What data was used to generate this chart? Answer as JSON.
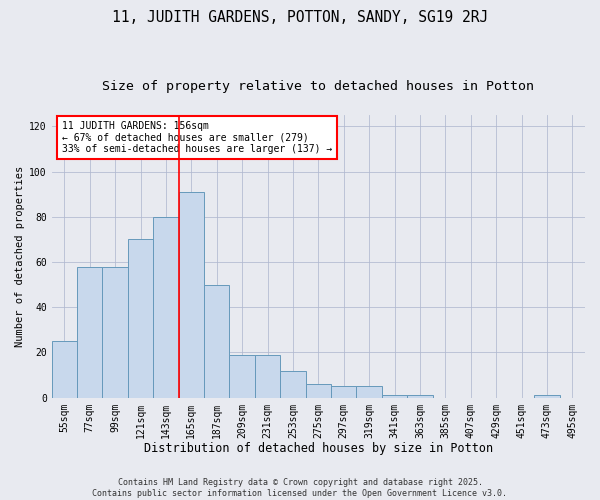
{
  "title1": "11, JUDITH GARDENS, POTTON, SANDY, SG19 2RJ",
  "title2": "Size of property relative to detached houses in Potton",
  "xlabel": "Distribution of detached houses by size in Potton",
  "ylabel": "Number of detached properties",
  "categories": [
    "55sqm",
    "77sqm",
    "99sqm",
    "121sqm",
    "143sqm",
    "165sqm",
    "187sqm",
    "209sqm",
    "231sqm",
    "253sqm",
    "275sqm",
    "297sqm",
    "319sqm",
    "341sqm",
    "363sqm",
    "385sqm",
    "407sqm",
    "429sqm",
    "451sqm",
    "473sqm",
    "495sqm"
  ],
  "values": [
    25,
    58,
    58,
    70,
    80,
    91,
    50,
    19,
    19,
    12,
    6,
    5,
    5,
    1,
    1,
    0,
    0,
    0,
    0,
    1,
    0
  ],
  "bar_color": "#c8d8ec",
  "bar_edge_color": "#6699bb",
  "annotation_text": "11 JUDITH GARDENS: 156sqm\n← 67% of detached houses are smaller (279)\n33% of semi-detached houses are larger (137) →",
  "annotation_box_color": "white",
  "annotation_box_edge_color": "red",
  "ref_line_x": 4.5,
  "ylim": [
    0,
    125
  ],
  "yticks": [
    0,
    20,
    40,
    60,
    80,
    100,
    120
  ],
  "grid_color": "#b0b8d0",
  "background_color": "#e8eaf0",
  "footer_text": "Contains HM Land Registry data © Crown copyright and database right 2025.\nContains public sector information licensed under the Open Government Licence v3.0.",
  "title1_fontsize": 10.5,
  "title2_fontsize": 9.5,
  "xlabel_fontsize": 8.5,
  "ylabel_fontsize": 7.5,
  "tick_fontsize": 7,
  "annotation_fontsize": 7,
  "footer_fontsize": 6
}
